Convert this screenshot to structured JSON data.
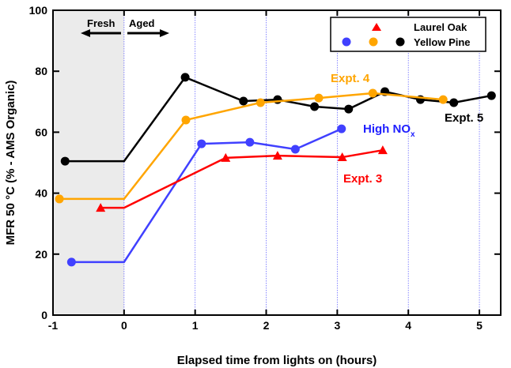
{
  "chart_data": {
    "type": "line",
    "xlabel": "Elapsed time from lights on (hours)",
    "ylabel": "MFR 50 °C (% - AMS Organic)",
    "xlim": [
      -1,
      5.3
    ],
    "ylim": [
      0,
      100
    ],
    "xticks": [
      -1,
      0,
      1,
      2,
      3,
      4,
      5
    ],
    "yticks": [
      0,
      20,
      40,
      60,
      80,
      100
    ],
    "grid": "vertical dotted lines at integer hours",
    "shaded_region": {
      "x": [
        -1,
        0
      ],
      "color": "#ebebeb"
    },
    "annotations": {
      "fresh": "Fresh",
      "aged": "Aged"
    },
    "legend": {
      "placement": "top-right",
      "entries": [
        "Laurel Oak",
        "Yellow Pine"
      ]
    },
    "series": [
      {
        "label": "Expt. 5",
        "marker": "circle",
        "color": "#000000",
        "x": [
          -0.83,
          0,
          0.86,
          1.68,
          2.16,
          2.68,
          3.16,
          3.67,
          4.17,
          4.64,
          5.17
        ],
        "y": [
          50.5,
          50.5,
          78,
          70.2,
          70.7,
          68.4,
          67.6,
          73.3,
          70.7,
          69.7,
          72
        ],
        "markers": [
          true,
          false,
          true,
          true,
          true,
          true,
          true,
          true,
          true,
          true,
          true
        ]
      },
      {
        "label": "Expt. 4",
        "marker": "circle",
        "color": "#ffa500",
        "x": [
          -0.91,
          0,
          0.87,
          1.92,
          2.74,
          3.5,
          4.49
        ],
        "y": [
          38.1,
          38.1,
          64,
          69.7,
          71.2,
          72.8,
          70.7
        ],
        "markers": [
          true,
          false,
          true,
          true,
          true,
          true,
          true
        ]
      },
      {
        "label": "High NO",
        "label_sub": "x",
        "marker": "circle",
        "color": "#4040ff",
        "x": [
          -0.74,
          0,
          1.09,
          1.77,
          2.41,
          3.06
        ],
        "y": [
          17.4,
          17.4,
          56.2,
          56.7,
          54.4,
          61.1
        ],
        "markers": [
          true,
          false,
          true,
          true,
          true,
          true
        ]
      },
      {
        "label": "Expt. 3",
        "marker": "triangle",
        "color": "#ff0000",
        "x": [
          -0.33,
          0,
          1.43,
          2.16,
          3.07,
          3.64
        ],
        "y": [
          35.2,
          35.2,
          51.6,
          52.3,
          51.8,
          54.1
        ],
        "markers": [
          true,
          false,
          true,
          true,
          true,
          true
        ]
      }
    ]
  }
}
